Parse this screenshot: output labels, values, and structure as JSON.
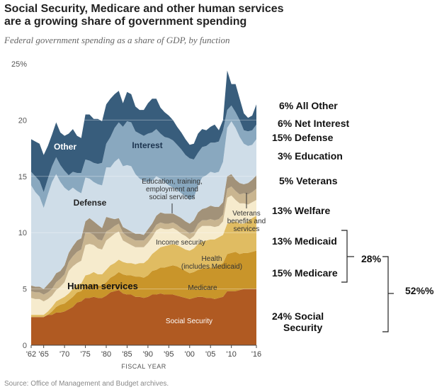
{
  "title": "Social Security, Medicare and other human services are a growing share of government spending",
  "subtitle": "Federal government spending as a share of GDP, by function",
  "source": "Source: Office of Management and Budget archives.",
  "chart_data": {
    "type": "area",
    "stacking": "stacked",
    "xlabel": "FISCAL YEAR",
    "ylabel": "",
    "ylim": [
      0,
      25
    ],
    "yticks": [
      0,
      5,
      10,
      15,
      20,
      25
    ],
    "ytick_labels": [
      "0",
      "5",
      "10",
      "15",
      "20",
      "25%"
    ],
    "xlim": [
      1962,
      2016
    ],
    "xticks": [
      1962,
      1965,
      1970,
      1975,
      1980,
      1985,
      1990,
      1995,
      2000,
      2005,
      2010,
      2016
    ],
    "xtick_labels": [
      "'62",
      "'65",
      "'70",
      "'75",
      "'80",
      "'85",
      "'90",
      "'95",
      "'00",
      "'05",
      "'10",
      "'16"
    ],
    "grid": true,
    "x": [
      1962,
      1963,
      1964,
      1965,
      1966,
      1967,
      1968,
      1969,
      1970,
      1971,
      1972,
      1973,
      1974,
      1975,
      1976,
      1977,
      1978,
      1979,
      1980,
      1981,
      1982,
      1983,
      1984,
      1985,
      1986,
      1987,
      1988,
      1989,
      1990,
      1991,
      1992,
      1993,
      1994,
      1995,
      1996,
      1997,
      1998,
      1999,
      2000,
      2001,
      2002,
      2003,
      2004,
      2005,
      2006,
      2007,
      2008,
      2009,
      2010,
      2011,
      2012,
      2013,
      2014,
      2015,
      2016
    ],
    "cumulative_tops": {
      "Social Security": [
        2.5,
        2.5,
        2.5,
        2.5,
        2.7,
        2.7,
        2.9,
        2.9,
        3.0,
        3.2,
        3.4,
        3.8,
        3.9,
        4.2,
        4.2,
        4.3,
        4.2,
        4.2,
        4.4,
        4.7,
        4.8,
        4.9,
        4.6,
        4.5,
        4.5,
        4.3,
        4.3,
        4.2,
        4.3,
        4.5,
        4.5,
        4.6,
        4.5,
        4.5,
        4.5,
        4.4,
        4.3,
        4.2,
        4.1,
        4.2,
        4.3,
        4.3,
        4.2,
        4.2,
        4.1,
        4.2,
        4.3,
        4.8,
        4.8,
        4.8,
        4.9,
        5.0,
        5.0,
        5.0,
        5.0
      ],
      "Medicare": [
        2.5,
        2.5,
        2.5,
        2.5,
        2.7,
        3.0,
        3.4,
        3.6,
        3.7,
        4.0,
        4.3,
        4.7,
        4.8,
        5.3,
        5.3,
        5.5,
        5.3,
        5.3,
        5.6,
        6.0,
        6.2,
        6.5,
        6.3,
        6.2,
        6.2,
        6.1,
        6.1,
        6.0,
        6.2,
        6.6,
        6.7,
        6.9,
        6.9,
        7.0,
        7.1,
        7.0,
        6.8,
        6.6,
        6.4,
        6.5,
        6.7,
        6.8,
        6.8,
        6.9,
        6.9,
        7.1,
        7.3,
        8.1,
        8.2,
        8.3,
        8.1,
        8.2,
        8.2,
        8.3,
        8.4
      ],
      "Health (includes Medicaid)": [
        2.7,
        2.7,
        2.7,
        2.7,
        3.0,
        3.4,
        3.9,
        4.1,
        4.3,
        4.6,
        5.0,
        5.4,
        5.5,
        6.2,
        6.3,
        6.5,
        6.3,
        6.3,
        6.7,
        7.1,
        7.3,
        7.6,
        7.4,
        7.3,
        7.3,
        7.2,
        7.3,
        7.3,
        7.6,
        8.1,
        8.4,
        8.7,
        8.8,
        8.9,
        9.0,
        8.9,
        8.7,
        8.5,
        8.4,
        8.6,
        9.0,
        9.2,
        9.3,
        9.4,
        9.4,
        9.6,
        9.8,
        10.8,
        10.9,
        11.0,
        10.8,
        10.8,
        11.0,
        11.3,
        11.5
      ],
      "Income security": [
        4.2,
        4.1,
        4.1,
        3.9,
        4.1,
        4.4,
        4.9,
        5.2,
        5.6,
        6.6,
        7.0,
        7.3,
        7.5,
        8.9,
        9.0,
        8.9,
        8.6,
        8.5,
        9.3,
        9.6,
        9.9,
        10.1,
        9.3,
        9.1,
        8.9,
        8.7,
        8.7,
        8.7,
        9.1,
        9.6,
        10.2,
        10.4,
        10.3,
        10.3,
        10.4,
        10.2,
        9.9,
        9.7,
        9.4,
        9.7,
        10.3,
        10.6,
        10.6,
        10.6,
        10.5,
        10.6,
        11.0,
        13.1,
        13.3,
        12.9,
        12.6,
        12.6,
        12.5,
        12.7,
        12.9
      ],
      "Veterans benefits and services": [
        4.8,
        4.7,
        4.7,
        4.5,
        4.7,
        5.0,
        5.6,
        5.9,
        6.3,
        7.4,
        7.9,
        8.3,
        8.5,
        10.0,
        10.0,
        9.8,
        9.4,
        9.3,
        10.1,
        10.3,
        10.6,
        10.8,
        10.0,
        9.7,
        9.5,
        9.3,
        9.3,
        9.3,
        9.7,
        10.1,
        10.7,
        10.9,
        10.8,
        10.8,
        10.9,
        10.7,
        10.4,
        10.2,
        9.9,
        10.1,
        10.8,
        11.1,
        11.1,
        11.2,
        11.1,
        11.2,
        11.6,
        13.9,
        14.1,
        13.7,
        13.4,
        13.5,
        13.4,
        13.6,
        13.9
      ],
      "Education, training, employment and social services": [
        5.3,
        5.2,
        5.2,
        5.0,
        5.4,
        5.8,
        6.4,
        6.6,
        7.1,
        8.2,
        8.8,
        9.3,
        9.5,
        11.0,
        11.3,
        11.0,
        10.7,
        10.4,
        11.4,
        11.3,
        11.2,
        11.3,
        10.5,
        10.3,
        10.1,
        9.9,
        9.9,
        9.8,
        10.3,
        10.8,
        11.5,
        11.8,
        11.7,
        11.7,
        11.7,
        11.5,
        11.3,
        11.0,
        10.8,
        11.1,
        11.8,
        12.1,
        12.2,
        12.4,
        12.3,
        12.3,
        12.7,
        15.0,
        15.2,
        14.7,
        14.4,
        14.3,
        14.4,
        14.7,
        15.1
      ],
      "Defense": [
        14.2,
        13.6,
        13.2,
        12.2,
        13.4,
        14.5,
        15.2,
        14.5,
        14.0,
        13.7,
        14.0,
        13.7,
        13.5,
        14.9,
        14.8,
        14.5,
        14.3,
        14.2,
        15.8,
        15.8,
        16.3,
        16.6,
        15.9,
        16.0,
        15.9,
        15.2,
        14.8,
        14.6,
        14.5,
        14.6,
        15.0,
        14.8,
        14.5,
        14.2,
        14.0,
        13.8,
        13.5,
        13.2,
        12.9,
        13.1,
        14.2,
        14.9,
        15.1,
        15.4,
        15.3,
        15.4,
        16.3,
        19.3,
        19.9,
        19.3,
        18.5,
        17.9,
        17.7,
        17.8,
        18.3
      ],
      "Interest": [
        15.4,
        15.0,
        14.6,
        13.6,
        14.8,
        15.9,
        16.7,
        16.0,
        15.5,
        15.1,
        15.4,
        15.3,
        15.3,
        16.5,
        16.4,
        16.2,
        16.1,
        16.2,
        17.9,
        18.5,
        19.3,
        19.8,
        19.4,
        19.9,
        19.8,
        19.0,
        18.8,
        18.6,
        18.8,
        18.9,
        19.2,
        18.8,
        18.5,
        18.4,
        18.2,
        17.8,
        17.4,
        16.9,
        16.6,
        16.5,
        17.1,
        17.6,
        17.7,
        18.0,
        18.0,
        18.1,
        19.1,
        20.9,
        21.3,
        20.7,
        20.0,
        19.1,
        19.0,
        19.1,
        19.6
      ],
      "Other": [
        18.3,
        18.1,
        17.9,
        16.9,
        17.7,
        18.7,
        19.8,
        18.9,
        18.6,
        18.8,
        19.2,
        18.6,
        18.4,
        20.5,
        20.5,
        20.1,
        20.1,
        19.9,
        21.4,
        21.9,
        22.3,
        22.6,
        21.5,
        22.5,
        22.3,
        21.2,
        20.9,
        20.9,
        21.5,
        21.9,
        21.9,
        21.1,
        20.7,
        20.4,
        20.0,
        19.4,
        18.9,
        18.3,
        17.8,
        17.9,
        18.8,
        19.2,
        19.1,
        19.4,
        19.6,
        19.1,
        20.0,
        24.4,
        23.2,
        23.2,
        21.9,
        20.6,
        20.2,
        20.4,
        21.4
      ]
    },
    "series": [
      {
        "name": "Social Security",
        "color": "#b05a22",
        "label": "Social Security"
      },
      {
        "name": "Medicare",
        "color": "#c9952a",
        "label": "Medicare"
      },
      {
        "name": "Health (includes Medicaid)",
        "color": "#e0bc62",
        "label": "Health\n(includes Medicaid)"
      },
      {
        "name": "Income security",
        "color": "#f6ebcd",
        "label": "Income security"
      },
      {
        "name": "Veterans benefits and services",
        "color": "#c9b590",
        "label": "Veterans\nbenefits and\nservices"
      },
      {
        "name": "Education, training, employment and social services",
        "color": "#a29279",
        "label": "Education, training,\nemployment and\nsocial services"
      },
      {
        "name": "Defense",
        "color": "#cfdde8",
        "label": "Defense"
      },
      {
        "name": "Interest",
        "color": "#89a8bf",
        "label": "Interest"
      },
      {
        "name": "Other",
        "color": "#385d7c",
        "label": "Other"
      }
    ],
    "group_label": "Human services",
    "annotations_right": [
      {
        "text": "6% All Other"
      },
      {
        "text": "6% Net Interest"
      },
      {
        "text": "15% Defense"
      },
      {
        "text": "3% Education"
      },
      {
        "text": "5% Veterans"
      },
      {
        "text": "13% Welfare"
      },
      {
        "text": "13% Medicaid"
      },
      {
        "text": "15% Medicare"
      },
      {
        "text": "24% Social\nSecurity"
      },
      {
        "text": "28%"
      },
      {
        "text": "52%%"
      }
    ]
  }
}
